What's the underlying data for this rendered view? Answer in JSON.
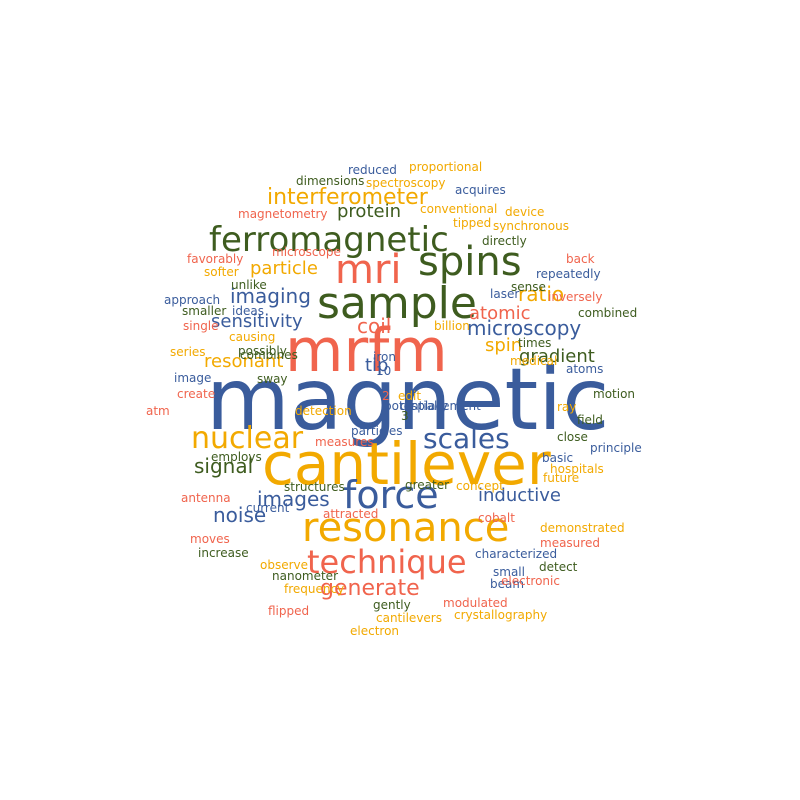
{
  "palette": {
    "blue": "#3a5c9c",
    "orange": "#f2a900",
    "red": "#f0644d",
    "green": "#3e5c1f"
  },
  "words": [
    {
      "text": "magnetic",
      "color": "blue"
    },
    {
      "text": "mrfm",
      "color": "red"
    },
    {
      "text": "cantilever",
      "color": "orange"
    },
    {
      "text": "sample",
      "color": "green"
    },
    {
      "text": "resonance",
      "color": "orange"
    },
    {
      "text": "spins",
      "color": "green"
    },
    {
      "text": "force",
      "color": "blue"
    },
    {
      "text": "mri",
      "color": "red"
    },
    {
      "text": "ferromagnetic",
      "color": "green"
    },
    {
      "text": "technique",
      "color": "red"
    },
    {
      "text": "nuclear",
      "color": "orange"
    },
    {
      "text": "scales",
      "color": "blue"
    },
    {
      "text": "interferometer",
      "color": "orange"
    },
    {
      "text": "generate",
      "color": "red"
    },
    {
      "text": "images",
      "color": "blue"
    },
    {
      "text": "inductive",
      "color": "blue"
    },
    {
      "text": "gradient",
      "color": "green"
    },
    {
      "text": "microscopy",
      "color": "blue"
    },
    {
      "text": "imaging",
      "color": "blue"
    },
    {
      "text": "protein",
      "color": "green"
    },
    {
      "text": "particle",
      "color": "orange"
    },
    {
      "text": "sensitivity",
      "color": "blue"
    },
    {
      "text": "resonant",
      "color": "orange"
    },
    {
      "text": "atomic",
      "color": "red"
    },
    {
      "text": "signal",
      "color": "green"
    },
    {
      "text": "noise",
      "color": "blue"
    },
    {
      "text": "ratio",
      "color": "orange"
    },
    {
      "text": "coil",
      "color": "red"
    },
    {
      "text": "spin",
      "color": "orange"
    },
    {
      "text": "tip",
      "color": "blue"
    },
    {
      "text": "reduced",
      "color": "blue"
    },
    {
      "text": "proportional",
      "color": "orange"
    },
    {
      "text": "dimensions",
      "color": "green"
    },
    {
      "text": "spectroscopy",
      "color": "orange"
    },
    {
      "text": "acquires",
      "color": "blue"
    },
    {
      "text": "conventional",
      "color": "orange"
    },
    {
      "text": "magnetometry",
      "color": "red"
    },
    {
      "text": "device",
      "color": "orange"
    },
    {
      "text": "tipped",
      "color": "orange"
    },
    {
      "text": "synchronous",
      "color": "orange"
    },
    {
      "text": "directly",
      "color": "green"
    },
    {
      "text": "microscope",
      "color": "red"
    },
    {
      "text": "favorably",
      "color": "red"
    },
    {
      "text": "back",
      "color": "red"
    },
    {
      "text": "softer",
      "color": "orange"
    },
    {
      "text": "repeatedly",
      "color": "blue"
    },
    {
      "text": "unlike",
      "color": "green"
    },
    {
      "text": "sense",
      "color": "green"
    },
    {
      "text": "laser",
      "color": "blue"
    },
    {
      "text": "inversely",
      "color": "red"
    },
    {
      "text": "approach",
      "color": "blue"
    },
    {
      "text": "smaller",
      "color": "green"
    },
    {
      "text": "ideas",
      "color": "blue"
    },
    {
      "text": "combined",
      "color": "green"
    },
    {
      "text": "single",
      "color": "red"
    },
    {
      "text": "billion",
      "color": "orange"
    },
    {
      "text": "causing",
      "color": "orange"
    },
    {
      "text": "times",
      "color": "green"
    },
    {
      "text": "possibly",
      "color": "green"
    },
    {
      "text": "series",
      "color": "orange"
    },
    {
      "text": "combines",
      "color": "green"
    },
    {
      "text": "iron",
      "color": "blue"
    },
    {
      "text": "medical",
      "color": "orange"
    },
    {
      "text": "atoms",
      "color": "blue"
    },
    {
      "text": "image",
      "color": "blue"
    },
    {
      "text": "sway",
      "color": "green"
    },
    {
      "text": "10",
      "color": "blue"
    },
    {
      "text": "motion",
      "color": "green"
    },
    {
      "text": "create",
      "color": "red"
    },
    {
      "text": "2",
      "color": "red"
    },
    {
      "text": "edit",
      "color": "orange"
    },
    {
      "text": "ray",
      "color": "orange"
    },
    {
      "text": "potentially",
      "color": "blue"
    },
    {
      "text": "3",
      "color": "green"
    },
    {
      "text": "atm",
      "color": "red"
    },
    {
      "text": "detection",
      "color": "orange"
    },
    {
      "text": "field",
      "color": "green"
    },
    {
      "text": "particles",
      "color": "blue"
    },
    {
      "text": "close",
      "color": "green"
    },
    {
      "text": "principle",
      "color": "blue"
    },
    {
      "text": "measures",
      "color": "red"
    },
    {
      "text": "basic",
      "color": "blue"
    },
    {
      "text": "employs",
      "color": "green"
    },
    {
      "text": "hospitals",
      "color": "orange"
    },
    {
      "text": "future",
      "color": "orange"
    },
    {
      "text": "structures",
      "color": "green"
    },
    {
      "text": "greater",
      "color": "green"
    },
    {
      "text": "concept",
      "color": "orange"
    },
    {
      "text": "antenna",
      "color": "red"
    },
    {
      "text": "attracted",
      "color": "red"
    },
    {
      "text": "current",
      "color": "blue"
    },
    {
      "text": "cobalt",
      "color": "red"
    },
    {
      "text": "demonstrated",
      "color": "orange"
    },
    {
      "text": "moves",
      "color": "red"
    },
    {
      "text": "measured",
      "color": "red"
    },
    {
      "text": "increase",
      "color": "green"
    },
    {
      "text": "characterized",
      "color": "blue"
    },
    {
      "text": "observe",
      "color": "orange"
    },
    {
      "text": "nanometer",
      "color": "green"
    },
    {
      "text": "small",
      "color": "blue"
    },
    {
      "text": "detect",
      "color": "green"
    },
    {
      "text": "frequency",
      "color": "orange"
    },
    {
      "text": "beam",
      "color": "blue"
    },
    {
      "text": "electronic",
      "color": "red"
    },
    {
      "text": "gently",
      "color": "green"
    },
    {
      "text": "modulated",
      "color": "red"
    },
    {
      "text": "flipped",
      "color": "red"
    },
    {
      "text": "cantilevers",
      "color": "orange"
    },
    {
      "text": "crystallography",
      "color": "orange"
    },
    {
      "text": "electron",
      "color": "orange"
    },
    {
      "text": "displacement",
      "color": "blue"
    }
  ]
}
